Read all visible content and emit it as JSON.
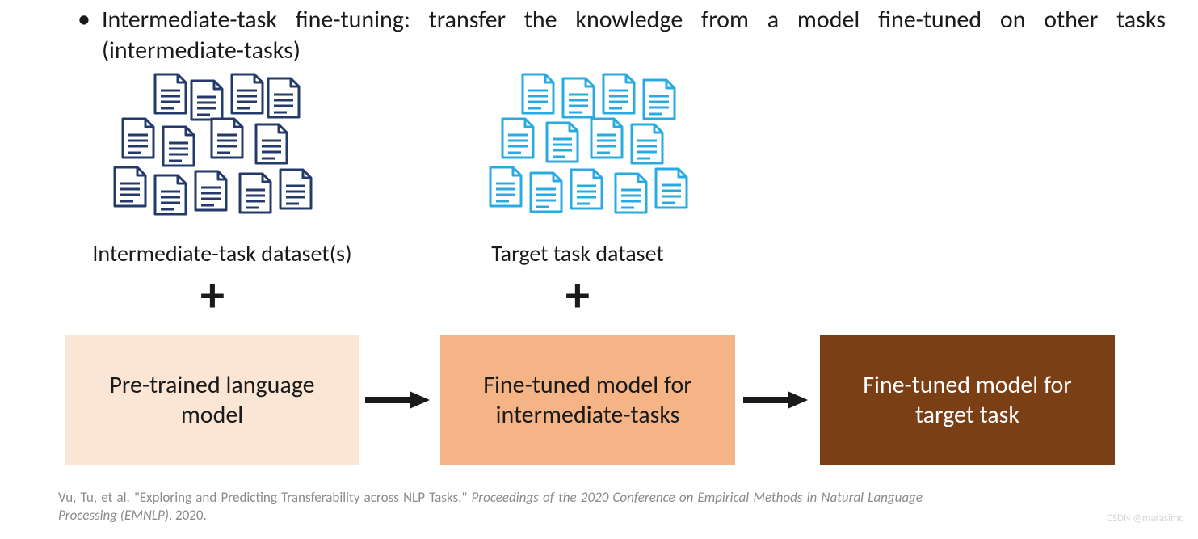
{
  "bullet": "Intermediate-task fine-tuning: transfer the knowledge from a model fine-tuned on other tasks (intermediate-tasks)",
  "clusters": {
    "left": {
      "label": "Intermediate-task dataset(s)",
      "color": "#233a6b",
      "positions": [
        [
          60,
          0
        ],
        [
          105,
          8
        ],
        [
          155,
          0
        ],
        [
          200,
          5
        ],
        [
          20,
          55
        ],
        [
          70,
          65
        ],
        [
          130,
          55
        ],
        [
          185,
          62
        ],
        [
          10,
          115
        ],
        [
          60,
          125
        ],
        [
          110,
          120
        ],
        [
          165,
          123
        ],
        [
          215,
          118
        ]
      ]
    },
    "right": {
      "label": "Target task dataset",
      "color": "#29abe2",
      "positions": [
        [
          55,
          0
        ],
        [
          105,
          5
        ],
        [
          155,
          0
        ],
        [
          205,
          7
        ],
        [
          30,
          55
        ],
        [
          85,
          60
        ],
        [
          140,
          55
        ],
        [
          190,
          62
        ],
        [
          15,
          115
        ],
        [
          65,
          122
        ],
        [
          115,
          118
        ],
        [
          170,
          123
        ],
        [
          220,
          117
        ]
      ]
    }
  },
  "plus": "+",
  "boxes": {
    "b1": {
      "text": "Pre-trained language model",
      "bg": "#fbe6d6",
      "fg": "#1a1a1a"
    },
    "b2": {
      "text": "Fine-tuned model for intermediate-tasks",
      "bg": "#f5b486",
      "fg": "#1a1a1a"
    },
    "b3": {
      "text": "Fine-tuned model for target task",
      "bg": "#7b3f15",
      "fg": "#ffffff"
    }
  },
  "arrow_color": "#1a1a1a",
  "citation_prefix": "Vu, Tu, et al. \"Exploring and Predicting Transferability across NLP Tasks.\" ",
  "citation_venue": "Proceedings of the 2020 Conference on Empirical Methods in Natural Language Processing (EMNLP)",
  "citation_suffix": ". 2020.",
  "watermark": "CSDN @marasimc",
  "doc_icon": {
    "w": 42,
    "h": 52
  }
}
